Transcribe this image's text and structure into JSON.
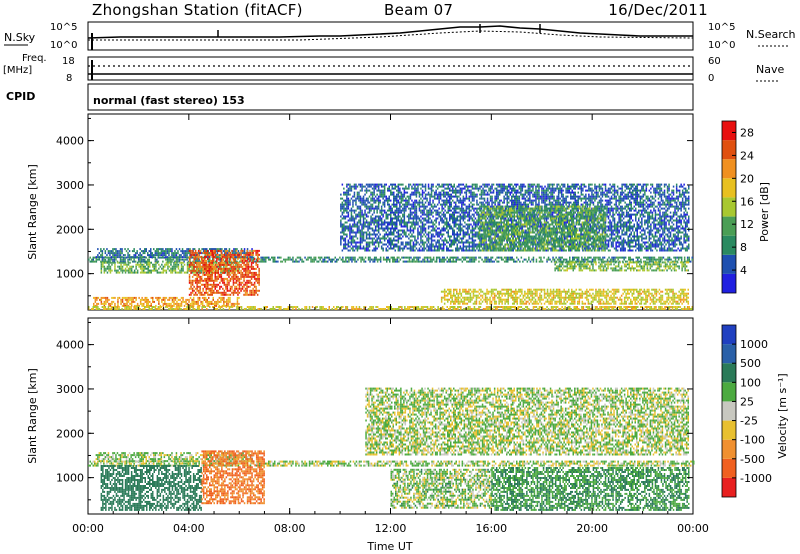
{
  "header": {
    "station": "Zhongshan Station (fitACF)",
    "beam": "Beam 07",
    "date": "16/Dec/2011"
  },
  "strip": {
    "nsky": "N.Sky",
    "nsearch": "N.Search",
    "freq_label": "Freq.",
    "freq_unit": "[MHz]",
    "nave": "Nave",
    "cpid": "CPID",
    "cpid_value": "normal (fast stereo) 153",
    "sky_ticks": [
      "10^5",
      "10^0"
    ],
    "right_sky_ticks": [
      "10^5",
      "10^0"
    ],
    "freq_ticks": [
      "18",
      "8"
    ],
    "nave_ticks": [
      "60",
      "0"
    ]
  },
  "colors": {
    "power": [
      "#2020e0",
      "#1e50b0",
      "#2a8a60",
      "#4a9e55",
      "#a8c830",
      "#e8c020",
      "#f09020",
      "#e05010",
      "#e81010"
    ],
    "velocity": [
      "#2040c0",
      "#2a60a8",
      "#2a7a58",
      "#4caa40",
      "#c8c8c0",
      "#e8c030",
      "#f09030",
      "#f06020",
      "#e82020"
    ]
  },
  "chart_data": [
    {
      "type": "heatmap",
      "quantity": "Power",
      "xlabel": "Time UT",
      "ylabel": "Slant Range [km]",
      "x_ticks": [
        "00:00",
        "04:00",
        "08:00",
        "12:00",
        "16:00",
        "20:00",
        "00:00"
      ],
      "x_range_hours": [
        0,
        24
      ],
      "ylim_km": [
        180,
        4600
      ],
      "y_ticks": [
        1000,
        2000,
        3000,
        4000
      ],
      "colorbar": {
        "label": "Power [dB]",
        "ticks": [
          4,
          8,
          12,
          16,
          20,
          24,
          28
        ],
        "range": [
          0,
          30
        ]
      },
      "regions": [
        {
          "t0": 0.0,
          "t1": 24.0,
          "r0": 1250,
          "r1": 1350,
          "value": 9
        },
        {
          "t0": 0.3,
          "t1": 6.5,
          "r0": 1350,
          "r1": 1550,
          "value": 7
        },
        {
          "t0": 0.5,
          "t1": 6.0,
          "r0": 1000,
          "r1": 1250,
          "value": 13
        },
        {
          "t0": 4.0,
          "t1": 6.8,
          "r0": 500,
          "r1": 1500,
          "value": 26
        },
        {
          "t0": 0.2,
          "t1": 6.0,
          "r0": 250,
          "r1": 450,
          "value": 22
        },
        {
          "t0": 0.0,
          "t1": 24.0,
          "r0": 180,
          "r1": 260,
          "value": 18
        },
        {
          "t0": 10.0,
          "t1": 23.8,
          "r0": 1500,
          "r1": 3000,
          "value": 6
        },
        {
          "t0": 15.5,
          "t1": 20.5,
          "r0": 1500,
          "r1": 2500,
          "value": 12
        },
        {
          "t0": 14.0,
          "t1": 23.8,
          "r0": 300,
          "r1": 650,
          "value": 18
        },
        {
          "t0": 18.5,
          "t1": 23.8,
          "r0": 1050,
          "r1": 1250,
          "value": 14
        }
      ]
    },
    {
      "type": "heatmap",
      "quantity": "Velocity",
      "xlabel": "Time UT",
      "ylabel": "Slant Range [km]",
      "x_ticks": [
        "00:00",
        "04:00",
        "08:00",
        "12:00",
        "16:00",
        "20:00",
        "00:00"
      ],
      "x_range_hours": [
        0,
        24
      ],
      "ylim_km": [
        180,
        4600
      ],
      "y_ticks": [
        1000,
        2000,
        3000,
        4000
      ],
      "colorbar": {
        "label": "Velocity [m s⁻¹]",
        "ticks": [
          "1000",
          "500",
          "100",
          "25",
          "-25",
          "-100",
          "-500",
          "-1000"
        ]
      },
      "regions": [
        {
          "t0": 0.0,
          "t1": 24.0,
          "r0": 1250,
          "r1": 1350,
          "value": 0
        },
        {
          "t0": 0.3,
          "t1": 6.5,
          "r0": 1350,
          "r1": 1550,
          "value": 0
        },
        {
          "t0": 0.5,
          "t1": 4.5,
          "r0": 250,
          "r1": 1250,
          "value": 150
        },
        {
          "t0": 4.5,
          "t1": 7.0,
          "r0": 400,
          "r1": 1600,
          "value": -300
        },
        {
          "t0": 11.0,
          "t1": 23.8,
          "r0": 1500,
          "r1": 3000,
          "value": 0
        },
        {
          "t0": 16.0,
          "t1": 23.8,
          "r0": 250,
          "r1": 1200,
          "value": 60
        },
        {
          "t0": 12.0,
          "t1": 16.0,
          "r0": 300,
          "r1": 1200,
          "value": 10
        }
      ]
    }
  ]
}
